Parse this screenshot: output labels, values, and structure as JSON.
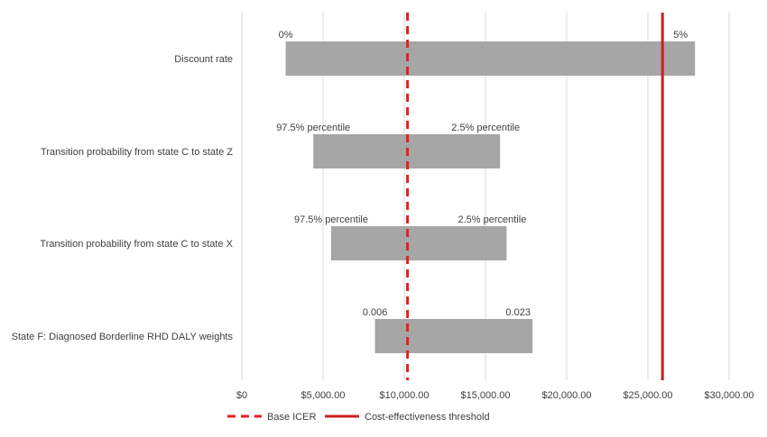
{
  "chart_data": {
    "type": "bar",
    "orientation": "horizontal-tornado",
    "title": "",
    "xlabel": "",
    "ylabel": "",
    "xlim": [
      0,
      30000
    ],
    "x_ticks": [
      0,
      5000,
      10000,
      15000,
      20000,
      25000,
      30000
    ],
    "x_tick_labels": [
      "$0",
      "$5,000.00",
      "$10,000.00",
      "$15,000.00",
      "$20,000.00",
      "$25,000.00",
      "$30,000.00"
    ],
    "grid": "vertical",
    "categories": [
      "Discount rate",
      "Transition probability from state C to state Z",
      "Transition probability from state C to state X",
      "State F: Diagnosed Borderline RHD DALY weights"
    ],
    "bars": [
      {
        "low": 2700,
        "high": 27900,
        "low_label": "0%",
        "high_label": "5%"
      },
      {
        "low": 4400,
        "high": 15900,
        "low_label": "97.5% percentile",
        "high_label": "2.5% percentile"
      },
      {
        "low": 5500,
        "high": 16300,
        "low_label": "97.5% percentile",
        "high_label": "2.5% percentile"
      },
      {
        "low": 8200,
        "high": 17900,
        "low_label": "0.006",
        "high_label": "0.023"
      }
    ],
    "bar_color": "#a6a6a6",
    "reference_lines": [
      {
        "name": "Base ICER",
        "value": 10200,
        "style": "dashed",
        "color": "#e02020"
      },
      {
        "name": "Cost-effectiveness threshold",
        "value": 25900,
        "style": "solid",
        "color": "#cc1f1f"
      }
    ],
    "legend": {
      "position": "bottom",
      "entries": [
        "Base ICER",
        "Cost-effectiveness threshold"
      ]
    }
  }
}
